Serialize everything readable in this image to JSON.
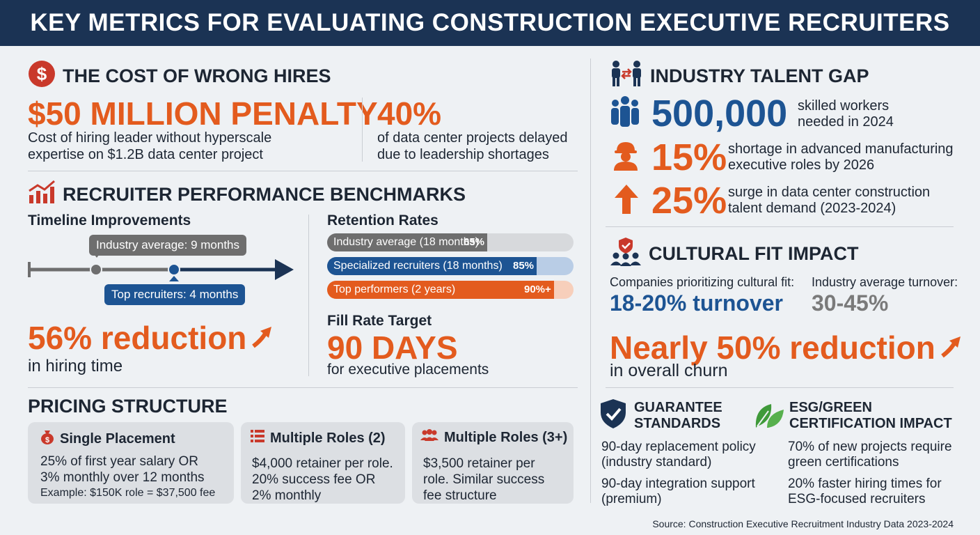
{
  "header": {
    "title": "KEY METRICS FOR EVALUATING CONSTRUCTION EXECUTIVE RECRUITERS"
  },
  "cost": {
    "title": "THE COST OF WRONG HIRES",
    "penalty_value": "$50 MILLION PENALTY",
    "penalty_desc_1": "Cost of hiring leader without hyperscale",
    "penalty_desc_2": "expertise on $1.2B data center project",
    "delay_value": "40%",
    "delay_desc_1": "of data center projects delayed",
    "delay_desc_2": "due to leadership shortages"
  },
  "benchmarks": {
    "title": "RECRUITER PERFORMANCE BENCHMARKS",
    "timeline_title": "Timeline Improvements",
    "industry_pill": "Industry average: 9 months",
    "top_pill": "Top recruiters: 4 months",
    "reduction_value": "56% reduction",
    "reduction_desc": "in hiring time",
    "retention_title": "Retention Rates",
    "retention": [
      {
        "label": "Industry average (18 months)",
        "pct_label": "65%",
        "value": 65,
        "color": "#6e6e6e"
      },
      {
        "label": "Specialized recruiters (18 months)",
        "pct_label": "85%",
        "value": 85,
        "color": "#1d5493"
      },
      {
        "label": "Top performers (2 years)",
        "pct_label": "90%+",
        "value": 92,
        "color": "#e35b1e"
      }
    ],
    "fill_title": "Fill Rate Target",
    "fill_value": "90 DAYS",
    "fill_desc": "for executive placements"
  },
  "pricing": {
    "title": "PRICING STRUCTURE",
    "cards": [
      {
        "title": "Single Placement",
        "line1": "25% of first year salary OR",
        "line2": "3% monthly over 12 months",
        "line3": "Example: $150K role = $37,500 fee"
      },
      {
        "title": "Multiple Roles (2)",
        "line1": "$4,000 retainer per role.",
        "line2": "20% success fee OR",
        "line3": "2% monthly"
      },
      {
        "title": "Multiple Roles (3+)",
        "line1": "$3,500 retainer per",
        "line2": "role. Similar success",
        "line3": "fee structure"
      }
    ]
  },
  "talent": {
    "title": "INDUSTRY TALENT GAP",
    "items": [
      {
        "value": "500,000",
        "desc1": "skilled workers",
        "desc2": "needed in 2024"
      },
      {
        "value": "15%",
        "desc1": "shortage in advanced manufacturing",
        "desc2": "executive roles by 2026"
      },
      {
        "value": "25%",
        "desc1": "surge in data center construction",
        "desc2": "talent demand (2023-2024)"
      }
    ]
  },
  "culture": {
    "title": "CULTURAL FIT IMPACT",
    "left_label": "Companies prioritizing cultural fit:",
    "left_value": "18-20% turnover",
    "right_label": "Industry average turnover:",
    "right_value": "30-45%",
    "reduction_value": "Nearly 50% reduction",
    "reduction_desc": "in overall churn"
  },
  "guarantee": {
    "title1": "GUARANTEE",
    "title2": "STANDARDS",
    "item1a": "90-day replacement policy",
    "item1b": "(industry standard)",
    "item2a": "90-day integration support",
    "item2b": "(premium)"
  },
  "esg": {
    "title1": "ESG/GREEN",
    "title2": "CERTIFICATION IMPACT",
    "item1a": "70% of new projects require",
    "item1b": "green certifications",
    "item2a": "20% faster hiring times for",
    "item2b": "ESG-focused recruiters"
  },
  "source": "Source: Construction Executive Recruitment Industry Data 2023-2024",
  "colors": {
    "navy": "#1b3354",
    "blue": "#1d5493",
    "orange": "#e35b1e",
    "grey": "#6e6e6e",
    "green": "#3f9a3a"
  }
}
